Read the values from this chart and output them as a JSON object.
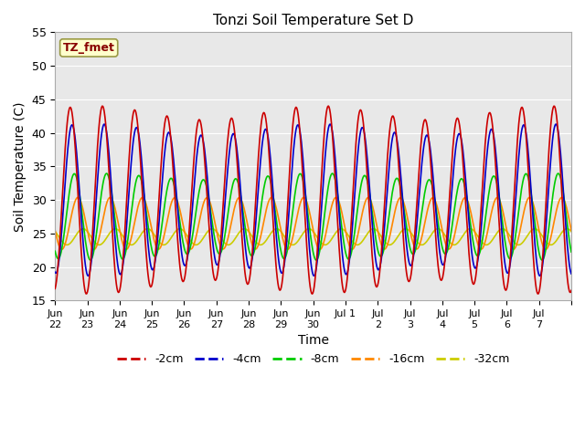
{
  "title": "Tonzi Soil Temperature Set D",
  "xlabel": "Time",
  "ylabel": "Soil Temperature (C)",
  "ylim": [
    15,
    55
  ],
  "yticks": [
    15,
    20,
    25,
    30,
    35,
    40,
    45,
    50,
    55
  ],
  "legend_labels": [
    "-2cm",
    "-4cm",
    "-8cm",
    "-16cm",
    "-32cm"
  ],
  "legend_colors": [
    "#cc0000",
    "#0000cc",
    "#00cc00",
    "#ff8800",
    "#cccc00"
  ],
  "annotation_text": "TZ_fmet",
  "annotation_color": "#880000",
  "annotation_bg": "#ffffcc",
  "annotation_edge": "#999944",
  "bg_color": "#e8e8e8",
  "n_days": 16,
  "points_per_day": 48,
  "tick_labels": [
    "Jun\n22",
    "Jun\n23",
    "Jun\n24",
    "Jun\n25",
    "Jun\n26",
    "Jun\n27",
    "Jun\n28",
    "Jun\n29",
    "Jun\n30",
    "Jul 1",
    "Jul\n2",
    "Jul\n3",
    "Jul\n4",
    "Jul\n5",
    "Jul\n6",
    "Jul\n7"
  ],
  "figsize": [
    6.4,
    4.8
  ],
  "dpi": 100
}
